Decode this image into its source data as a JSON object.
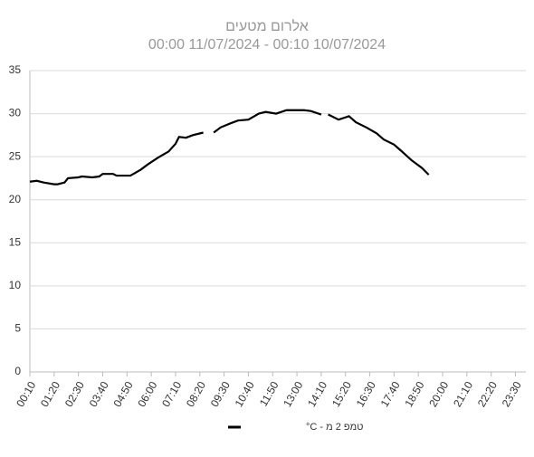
{
  "chart_data": {
    "type": "line",
    "title": "אלרום מטעים",
    "subtitle": "00:00 11/07/2024  -  00:10 10/07/2024",
    "x": [
      10,
      30,
      50,
      80,
      90,
      110,
      120,
      150,
      160,
      190,
      210,
      220,
      250,
      260,
      300,
      330,
      350,
      380,
      410,
      430,
      440,
      460,
      480,
      510,
      520,
      540,
      560,
      590,
      610,
      640,
      670,
      690,
      720,
      750,
      770,
      800,
      820,
      850,
      860,
      870,
      900,
      930,
      950,
      980,
      1010,
      1030,
      1060,
      1080,
      1110,
      1140,
      1160
    ],
    "series": [
      {
        "name": "טמפ 2 מ - C°",
        "color": "#000000",
        "values": [
          22.1,
          22.2,
          22.0,
          21.8,
          21.8,
          22.0,
          22.5,
          22.6,
          22.7,
          22.6,
          22.7,
          23.0,
          23.0,
          22.8,
          22.8,
          23.5,
          24.1,
          24.9,
          25.6,
          26.5,
          27.3,
          27.2,
          27.5,
          27.8,
          null,
          27.8,
          28.4,
          28.9,
          29.2,
          29.3,
          30.0,
          30.2,
          30.0,
          30.4,
          30.4,
          30.4,
          30.3,
          29.9,
          null,
          29.9,
          29.3,
          29.7,
          29.0,
          28.4,
          27.7,
          27.0,
          26.4,
          25.7,
          24.6,
          23.7,
          22.9
        ]
      }
    ],
    "xlim": [
      10,
      1440
    ],
    "xticks": [
      {
        "value": 10,
        "label": "00:10"
      },
      {
        "value": 80,
        "label": "01:20"
      },
      {
        "value": 150,
        "label": "02:30"
      },
      {
        "value": 220,
        "label": "03:40"
      },
      {
        "value": 290,
        "label": "04:50"
      },
      {
        "value": 360,
        "label": "06:00"
      },
      {
        "value": 430,
        "label": "07:10"
      },
      {
        "value": 500,
        "label": "08:20"
      },
      {
        "value": 570,
        "label": "09:30"
      },
      {
        "value": 640,
        "label": "10:40"
      },
      {
        "value": 710,
        "label": "11:50"
      },
      {
        "value": 780,
        "label": "13:00"
      },
      {
        "value": 850,
        "label": "14:10"
      },
      {
        "value": 920,
        "label": "15:20"
      },
      {
        "value": 990,
        "label": "16:30"
      },
      {
        "value": 1060,
        "label": "17:40"
      },
      {
        "value": 1130,
        "label": "18:50"
      },
      {
        "value": 1200,
        "label": "20:00"
      },
      {
        "value": 1270,
        "label": "21:10"
      },
      {
        "value": 1340,
        "label": "22:20"
      },
      {
        "value": 1410,
        "label": "23:30"
      }
    ],
    "ylim": [
      0,
      35
    ],
    "yticks": [
      0,
      5,
      10,
      15,
      20,
      25,
      30,
      35
    ],
    "grid": true,
    "legend": "bottom"
  }
}
